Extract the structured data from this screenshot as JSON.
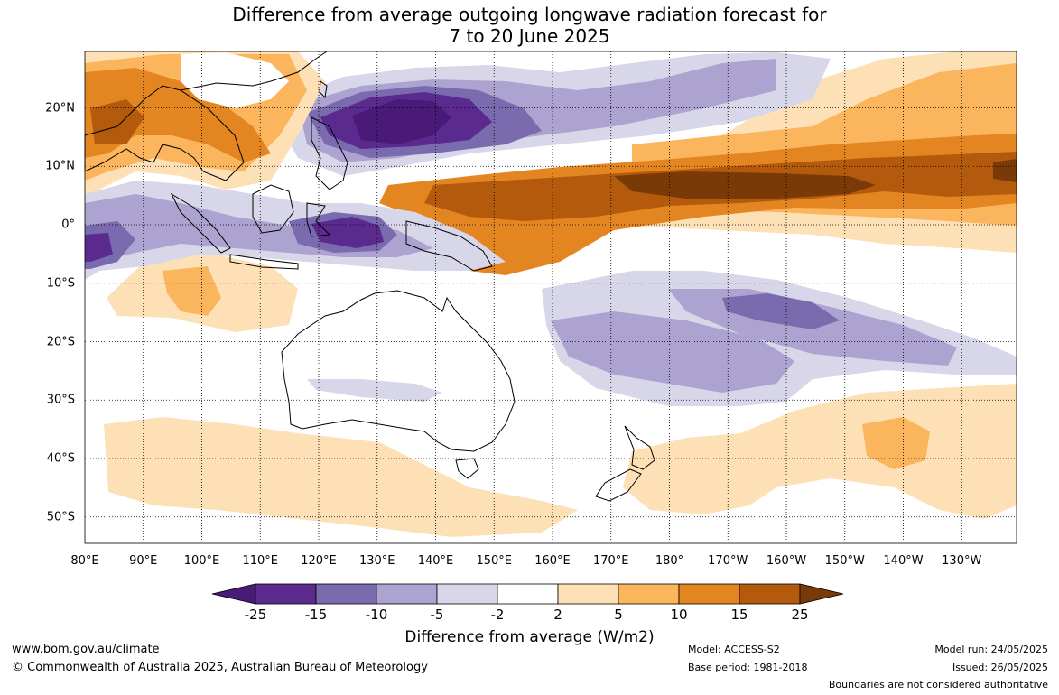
{
  "title_line1": "Difference from average outgoing longwave radiation forecast for",
  "title_line2": "7 to 20 June 2025",
  "x_ticks": [
    {
      "label": "80°E",
      "lon": 80
    },
    {
      "label": "90°E",
      "lon": 90
    },
    {
      "label": "100°E",
      "lon": 100
    },
    {
      "label": "110°E",
      "lon": 110
    },
    {
      "label": "120°E",
      "lon": 120
    },
    {
      "label": "130°E",
      "lon": 130
    },
    {
      "label": "140°E",
      "lon": 140
    },
    {
      "label": "150°E",
      "lon": 150
    },
    {
      "label": "160°E",
      "lon": 160
    },
    {
      "label": "170°E",
      "lon": 170
    },
    {
      "label": "180°",
      "lon": 180
    },
    {
      "label": "170°W",
      "lon": 190
    },
    {
      "label": "160°W",
      "lon": 200
    },
    {
      "label": "150°W",
      "lon": 210
    },
    {
      "label": "140°W",
      "lon": 220
    },
    {
      "label": "130°W",
      "lon": 230
    }
  ],
  "y_ticks": [
    {
      "label": "20°N",
      "lat": 20
    },
    {
      "label": "10°N",
      "lat": 10
    },
    {
      "label": "0°",
      "lat": 0
    },
    {
      "label": "10°S",
      "lat": -10
    },
    {
      "label": "20°S",
      "lat": -20
    },
    {
      "label": "30°S",
      "lat": -30
    },
    {
      "label": "40°S",
      "lat": -40
    },
    {
      "label": "50°S",
      "lat": -50
    }
  ],
  "colorbar": {
    "colors": [
      "#4a1a78",
      "#5b2a8e",
      "#7a6aae",
      "#ada3d0",
      "#d8d7ea",
      "#ffffff",
      "#fde0b6",
      "#fbb55d",
      "#e38520",
      "#b45a0c",
      "#7a3a08"
    ],
    "labels": [
      "-25",
      "-15",
      "-10",
      "-5",
      "-2",
      "2",
      "5",
      "10",
      "15",
      "25"
    ],
    "title": "Difference from average (W/m2)"
  },
  "footer": {
    "url": "www.bom.gov.au/climate",
    "copyright": "© Commonwealth of Australia 2025, Australian Bureau of Meteorology",
    "model": "Model: ACCESS-S2",
    "base_period": "Base period: 1981-2018",
    "model_run": "Model run: 24/05/2025",
    "issued": "Issued: 26/05/2025",
    "disclaimer": "Boundaries are not considered authoritative"
  }
}
